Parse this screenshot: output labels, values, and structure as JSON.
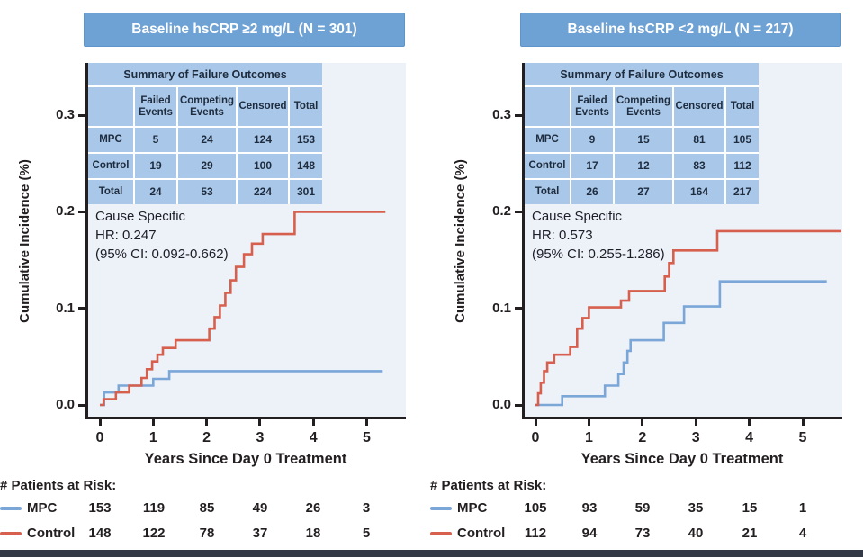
{
  "colors": {
    "banner_bg": "#6ea2d4",
    "banner_border": "#5e94c9",
    "banner_text": "#ffffff",
    "table_cell_bg": "#a9c7e8",
    "table_text": "#1e2c3e",
    "plot_bg": "#edf1f8",
    "axis": "#231f20",
    "mpc_line": "#7aa6d8",
    "control_line": "#d6604d",
    "bottom_bar": "#333a46"
  },
  "chart_data": [
    {
      "type": "line",
      "subtype": "cumulative-incidence-step",
      "title": "Baseline hsCRP ≥2 mg/L (N = 301)",
      "xlabel": "Years Since Day 0 Treatment",
      "ylabel": "Cumulative Incidence (%)",
      "xlim": [
        0,
        5.7
      ],
      "ylim": [
        0,
        0.33
      ],
      "xticks": [
        "0",
        "1",
        "2",
        "3",
        "4",
        "5"
      ],
      "yticks": [
        "0.0",
        "0.1",
        "0.2",
        "0.3"
      ],
      "grid": false,
      "annotation_lines": [
        "Cause Specific",
        "HR: 0.247",
        "(95% CI: 0.092-0.662)"
      ],
      "summary_table": {
        "title": "Summary of Failure Outcomes",
        "col_headers": [
          "",
          "Failed Events",
          "Competing Events",
          "Censored",
          "Total"
        ],
        "rows": [
          {
            "label": "MPC",
            "cells": [
              "5",
              "24",
              "124",
              "153"
            ]
          },
          {
            "label": "Control",
            "cells": [
              "19",
              "29",
              "100",
              "148"
            ]
          },
          {
            "label": "Total",
            "cells": [
              "24",
              "53",
              "224",
              "301"
            ]
          }
        ]
      },
      "series": [
        {
          "name": "MPC",
          "color_key": "mpc_line",
          "end": 5.3,
          "steps": [
            [
              0,
              0
            ],
            [
              0.08,
              0.013
            ],
            [
              0.35,
              0.02
            ],
            [
              1.0,
              0.027
            ],
            [
              1.3,
              0.035
            ]
          ]
        },
        {
          "name": "Control",
          "color_key": "control_line",
          "end": 5.35,
          "steps": [
            [
              0,
              0
            ],
            [
              0.07,
              0.006
            ],
            [
              0.3,
              0.013
            ],
            [
              0.55,
              0.02
            ],
            [
              0.78,
              0.028
            ],
            [
              0.88,
              0.037
            ],
            [
              0.98,
              0.045
            ],
            [
              1.08,
              0.052
            ],
            [
              1.18,
              0.059
            ],
            [
              1.42,
              0.067
            ],
            [
              2.05,
              0.079
            ],
            [
              2.15,
              0.091
            ],
            [
              2.25,
              0.103
            ],
            [
              2.35,
              0.116
            ],
            [
              2.45,
              0.129
            ],
            [
              2.55,
              0.143
            ],
            [
              2.7,
              0.156
            ],
            [
              2.85,
              0.167
            ],
            [
              3.05,
              0.177
            ],
            [
              3.65,
              0.2
            ]
          ]
        }
      ],
      "at_risk": {
        "title": "# Patients at Risk:",
        "rows": [
          {
            "label": "MPC",
            "color_key": "mpc_line",
            "counts": [
              "153",
              "119",
              "85",
              "49",
              "26",
              "3"
            ]
          },
          {
            "label": "Control",
            "color_key": "control_line",
            "counts": [
              "148",
              "122",
              "78",
              "37",
              "18",
              "5"
            ]
          }
        ]
      }
    },
    {
      "type": "line",
      "subtype": "cumulative-incidence-step",
      "title": "Baseline hsCRP <2 mg/L (N = 217)",
      "xlabel": "Years Since Day 0 Treatment",
      "ylabel": "Cumulative Incidence (%)",
      "xlim": [
        0,
        5.7
      ],
      "ylim": [
        0,
        0.33
      ],
      "xticks": [
        "0",
        "1",
        "2",
        "3",
        "4",
        "5"
      ],
      "yticks": [
        "0.0",
        "0.1",
        "0.2",
        "0.3"
      ],
      "grid": false,
      "annotation_lines": [
        "Cause Specific",
        "HR: 0.573",
        "(95% CI: 0.255-1.286)"
      ],
      "summary_table": {
        "title": "Summary of Failure Outcomes",
        "col_headers": [
          "",
          "Failed Events",
          "Competing Events",
          "Censored",
          "Total"
        ],
        "rows": [
          {
            "label": "MPC",
            "cells": [
              "9",
              "15",
              "81",
              "105"
            ]
          },
          {
            "label": "Control",
            "cells": [
              "17",
              "12",
              "83",
              "112"
            ]
          },
          {
            "label": "Total",
            "cells": [
              "26",
              "27",
              "164",
              "217"
            ]
          }
        ]
      },
      "series": [
        {
          "name": "MPC",
          "color_key": "mpc_line",
          "end": 5.45,
          "steps": [
            [
              0,
              0
            ],
            [
              0.5,
              0.009
            ],
            [
              1.3,
              0.02
            ],
            [
              1.55,
              0.032
            ],
            [
              1.65,
              0.044
            ],
            [
              1.72,
              0.056
            ],
            [
              1.78,
              0.067
            ],
            [
              2.4,
              0.085
            ],
            [
              2.78,
              0.102
            ],
            [
              3.45,
              0.128
            ]
          ]
        },
        {
          "name": "Control",
          "color_key": "control_line",
          "end": 5.72,
          "steps": [
            [
              0,
              0
            ],
            [
              0.05,
              0.012
            ],
            [
              0.1,
              0.023
            ],
            [
              0.16,
              0.035
            ],
            [
              0.22,
              0.044
            ],
            [
              0.35,
              0.052
            ],
            [
              0.65,
              0.06
            ],
            [
              0.78,
              0.079
            ],
            [
              0.88,
              0.09
            ],
            [
              1.0,
              0.101
            ],
            [
              1.6,
              0.108
            ],
            [
              1.75,
              0.118
            ],
            [
              2.42,
              0.133
            ],
            [
              2.5,
              0.147
            ],
            [
              2.58,
              0.16
            ],
            [
              3.4,
              0.18
            ]
          ]
        }
      ],
      "at_risk": {
        "title": "# Patients at Risk:",
        "rows": [
          {
            "label": "MPC",
            "color_key": "mpc_line",
            "counts": [
              "105",
              "93",
              "59",
              "35",
              "15",
              "1"
            ]
          },
          {
            "label": "Control",
            "color_key": "control_line",
            "counts": [
              "112",
              "94",
              "73",
              "40",
              "21",
              "4"
            ]
          }
        ]
      }
    }
  ]
}
